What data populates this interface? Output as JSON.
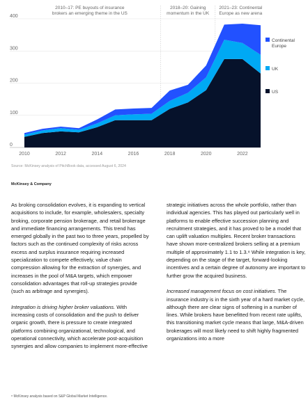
{
  "chart_data": {
    "type": "area",
    "stacked": true,
    "x": [
      2010,
      2011,
      2012,
      2013,
      2014,
      2015,
      2016,
      2017,
      2018,
      2019,
      2020,
      2021,
      2022,
      2023
    ],
    "series": [
      {
        "name": "US",
        "color": "#06122b",
        "values": [
          33,
          45,
          50,
          47,
          63,
          85,
          85,
          85,
          120,
          140,
          178,
          275,
          275,
          230
        ]
      },
      {
        "name": "UK",
        "color": "#00a9f4",
        "values": [
          7,
          8,
          10,
          8,
          12,
          15,
          18,
          20,
          25,
          30,
          40,
          60,
          50,
          58
        ]
      },
      {
        "name": "Continental Europe",
        "color": "#2251ff",
        "values": [
          5,
          5,
          5,
          5,
          12,
          18,
          18,
          18,
          32,
          25,
          37,
          47,
          60,
          92
        ]
      }
    ],
    "xticks": [
      "2010",
      "2012",
      "2014",
      "2016",
      "2018",
      "2020",
      "2022"
    ],
    "yticks": [
      "0",
      "100",
      "200",
      "300",
      "400"
    ],
    "ylim": [
      0,
      400
    ],
    "legend_position": "right",
    "annotations": [
      {
        "text": "2010–17: PE buyouts of insurance brokers an emerging theme in the US",
        "lines": [
          "2010–17: PE buyouts of insurance",
          "brokers an emerging theme in the US"
        ]
      },
      {
        "text": "2018–20: Gaining momentum in the UK",
        "lines": [
          "2018–20: Gaining",
          "momentum in the UK"
        ]
      },
      {
        "text": "2021–23: Continental Europe as new arena",
        "lines": [
          "2021–23: Continental",
          "Europe as new arena"
        ]
      }
    ]
  },
  "source": "Source: McKinsey analysis of PitchBook data, accessed August 6, 2024",
  "brand": "McKinsey & Company",
  "left_column": {
    "p1": "As broking consolidation evolves, it is expanding to vertical acquisitions to include, for example, wholesalers, specialty broking, corporate pension brokerage, and retail brokerage and immediate financing arrangements. This trend has emerged globally in the past two to three years, propelled by factors such as the continued complexity of risks across excess and surplus insurance requiring increased specialization to compete effectively, value chain compression allowing for the extraction of synergies, and increases in the pool of M&A targets, which empower consolidation advantages that roll-up strategies provide (such as arbitrage and synergies).",
    "p2_lead": "Integration is driving higher broker valuations.",
    "p2_rest": " With increasing costs of consolidation and the push to deliver organic growth, there is pressure to create integrated platforms combining organizational, technological, and operational connectivity, which accelerate post-acquisition synergies and allow companies to implement more-effective"
  },
  "right_column": {
    "p1": "strategic initiatives across the whole portfolio, rather than individual agencies. This has played out particularly well in platforms to enable effective succession planning and recruitment strategies, and it has proved to be a model that can uplift valuation multiples. Recent broker transactions have shown more-centralized brokers selling at a premium multiple of approximately 1.1 to 1.3.⁸ While integration is key, depending on the stage of the target, forward-looking incentives and a certain degree of autonomy are important to further grow the acquired business.",
    "p2_lead": "Increased management focus on cost initiatives.",
    "p2_rest": " The insurance industry is in the sixth year of a hard market cycle, although there are clear signs of softening in a number of lines. While brokers have benefitted from recent rate uplifts, this transitioning market cycle means that large, M&A-driven brokerages will most likely need to shift highly fragmented organizations into a more"
  },
  "footnote": "⁸ McKinsey analysis based on S&P Global Market Intelligence."
}
